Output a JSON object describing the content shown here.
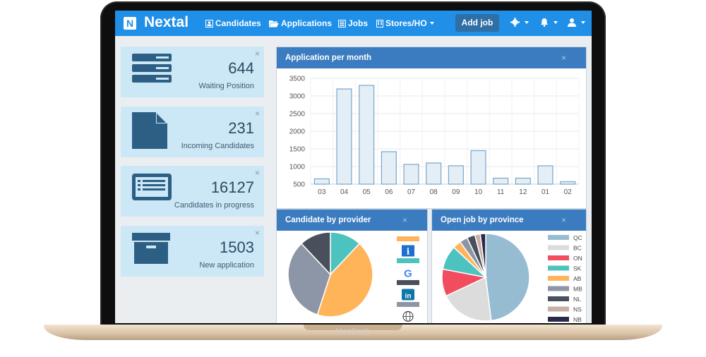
{
  "device": {
    "brand": "MacBook"
  },
  "navbar": {
    "logo_letter": "N",
    "brand": "Nextal",
    "items": [
      {
        "label": "Candidates",
        "icon": "id-card-icon"
      },
      {
        "label": "Applications",
        "icon": "folder-open-icon"
      },
      {
        "label": "Jobs",
        "icon": "list-icon"
      },
      {
        "label": "Stores/HO",
        "icon": "building-icon"
      }
    ],
    "add_job": "Add job"
  },
  "stats": [
    {
      "value": "644",
      "label": "Waiting Position",
      "icon": "server-icon"
    },
    {
      "value": "231",
      "label": "Incoming Candidates",
      "icon": "file-icon"
    },
    {
      "value": "16127",
      "label": "Candidates in progress",
      "icon": "list-card-icon"
    },
    {
      "value": "1503",
      "label": "New application",
      "icon": "archive-box-icon"
    }
  ],
  "close_glyph": "×",
  "panels": {
    "applications": "Application per month",
    "provider": "Candidate by provider",
    "province": "Open job by province"
  },
  "chart_data": [
    {
      "type": "bar",
      "title": "Application per month",
      "categories": [
        "03",
        "04",
        "05",
        "06",
        "07",
        "08",
        "09",
        "10",
        "11",
        "12",
        "01",
        "02"
      ],
      "values": [
        650,
        3200,
        3300,
        1420,
        1060,
        1100,
        1020,
        1450,
        670,
        670,
        1020,
        570
      ],
      "ylim": [
        500,
        3500
      ],
      "yticks": [
        500,
        1000,
        1500,
        2000,
        2500,
        3000,
        3500
      ],
      "grid": true,
      "colors": {
        "fill": "#e4eef6",
        "stroke": "#7aa6c8"
      }
    },
    {
      "type": "pie",
      "title": "Candidate by provider",
      "legend_placement": "right",
      "slices": [
        {
          "label": "teal",
          "value": 12,
          "color": "#4dc3bf"
        },
        {
          "label": "orange",
          "value": 43,
          "color": "#ffb45a"
        },
        {
          "label": "gray",
          "value": 33,
          "color": "#8d96a6"
        },
        {
          "label": "dark",
          "value": 12,
          "color": "#4a4f5c"
        }
      ],
      "legend_icons": [
        "orange-swatch",
        "indeed-icon",
        "teal-swatch",
        "google-icon",
        "dark-swatch",
        "linkedin-icon",
        "gray-swatch",
        "globe-icon"
      ]
    },
    {
      "type": "pie",
      "title": "Open job by province",
      "legend_placement": "right",
      "slices": [
        {
          "label": "QC",
          "value": 48,
          "color": "#96bcd2"
        },
        {
          "label": "BC",
          "value": 20,
          "color": "#dcdcdc"
        },
        {
          "label": "ON",
          "value": 10,
          "color": "#f24d5e"
        },
        {
          "label": "SK",
          "value": 9,
          "color": "#4dc3bf"
        },
        {
          "label": "AB",
          "value": 3,
          "color": "#ffb45a"
        },
        {
          "label": "MB",
          "value": 3,
          "color": "#8d96a6"
        },
        {
          "label": "NL",
          "value": 3,
          "color": "#4a4f5c"
        },
        {
          "label": "NS",
          "value": 2,
          "color": "#c8b0a6"
        },
        {
          "label": "NB",
          "value": 2,
          "color": "#2c2a4a"
        }
      ]
    }
  ]
}
